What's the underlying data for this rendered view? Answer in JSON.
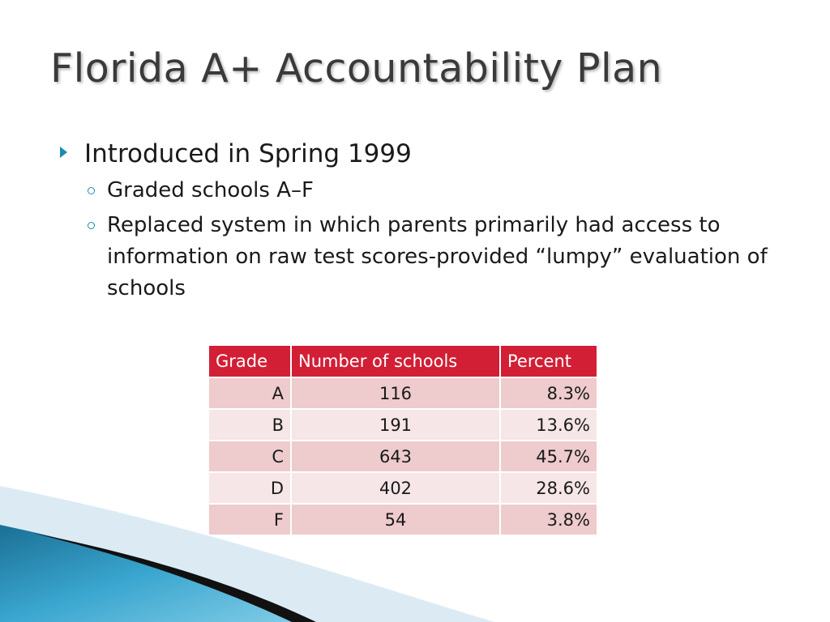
{
  "slide": {
    "title": "Florida A+ Accountability Plan",
    "bullet_main": "Introduced in Spring 1999",
    "sub_bullets": [
      "Graded schools A–F",
      "Replaced system in which parents primarily had access to information on raw test scores-provided “lumpy” evaluation of schools"
    ]
  },
  "table": {
    "headers": [
      "Grade",
      "Number of schools",
      "Percent"
    ],
    "rows": [
      [
        "A",
        "116",
        "8.3%"
      ],
      [
        "B",
        "191",
        "13.6%"
      ],
      [
        "C",
        "643",
        "45.7%"
      ],
      [
        "D",
        "402",
        "28.6%"
      ],
      [
        "F",
        "54",
        "3.8%"
      ]
    ]
  },
  "colors": {
    "header_fill": "#d21f35",
    "row_odd": "#eecbcd",
    "row_even": "#f6e6e7",
    "bullet_accent": "#1e8bb0",
    "corner_blue": "#2a8fb8"
  }
}
